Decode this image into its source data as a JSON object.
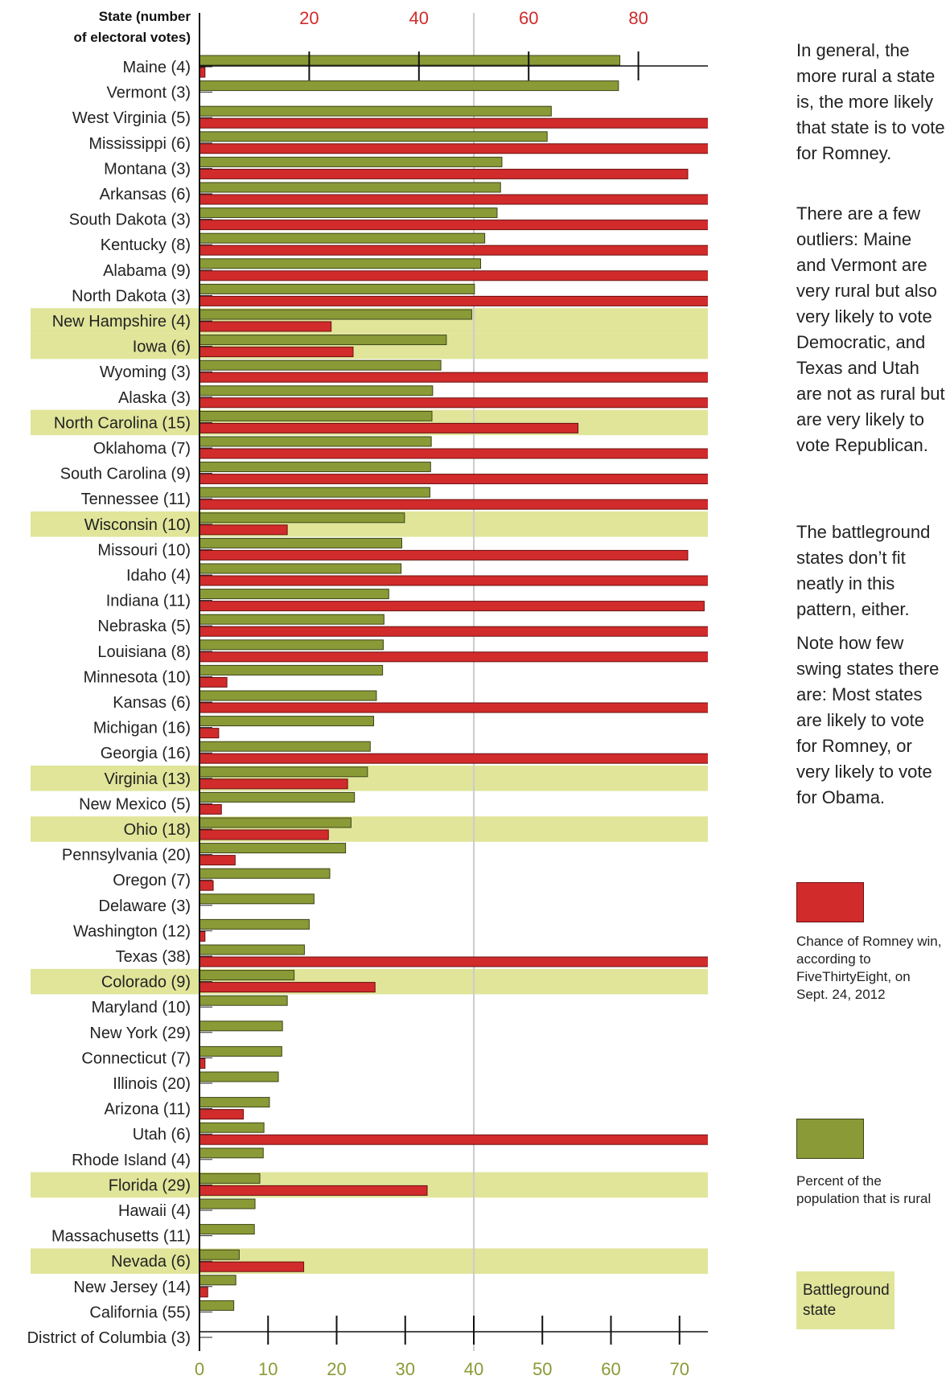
{
  "header": {
    "line1": "State (number",
    "line2": "of electoral votes)"
  },
  "notes": [
    "In general, the more rural a state is, the more likely that state is to vote for Romney.",
    "There are a few outliers: Maine and Vermont are very rural but also very likely to vote Democratic, and Texas and Utah are not as rural but are very likely to vote Republican.",
    "The battleground states don’t fit neatly in this pattern, either.",
    "Note how few swing states there are: Most states are likely to vote for Romney, or very likely to vote for Obama."
  ],
  "legend": {
    "romney": "Chance of Romney win, according to FiveThirtyEight, on Sept. 24, 2012",
    "rural": "Percent of the population that is rural",
    "battleground": "Battleground state"
  },
  "colors": {
    "red": "#d12b2b",
    "green": "#8a9a36",
    "highlight": "#e0e59a",
    "refline": "#cccccc"
  },
  "chart_data": {
    "type": "bar",
    "orientation": "horizontal",
    "top_axis": {
      "ticks": [
        "20",
        "40",
        "60",
        "80",
        "100"
      ],
      "range": [
        0,
        100
      ],
      "series": "Chance of Romney win"
    },
    "bottom_axis": {
      "ticks": [
        "0",
        "10",
        "20",
        "30",
        "40",
        "50",
        "60",
        "70",
        "80"
      ],
      "range": [
        0,
        80
      ],
      "series": "Percent of the population that is rural"
    },
    "categories": [
      "Maine (4)",
      "Vermont (3)",
      "West Virginia (5)",
      "Mississippi (6)",
      "Montana (3)",
      "Arkansas (6)",
      "South Dakota (3)",
      "Kentucky (8)",
      "Alabama (9)",
      "North Dakota (3)",
      "New Hampshire (4)",
      "Iowa (6)",
      "Wyoming (3)",
      "Alaska (3)",
      "North Carolina (15)",
      "Oklahoma (7)",
      "South Carolina (9)",
      "Tennessee (11)",
      "Wisconsin (10)",
      "Missouri (10)",
      "Idaho (4)",
      "Indiana (11)",
      "Nebraska (5)",
      "Louisiana (8)",
      "Minnesota (10)",
      "Kansas (6)",
      "Michigan (16)",
      "Georgia (16)",
      "Virginia (13)",
      "New Mexico (5)",
      "Ohio (18)",
      "Pennsylvania (20)",
      "Oregon (7)",
      "Delaware (3)",
      "Washington (12)",
      "Texas (38)",
      "Colorado (9)",
      "Maryland (10)",
      "New York (29)",
      "Connecticut (7)",
      "Illinois (20)",
      "Arizona (11)",
      "Utah (6)",
      "Rhode Island (4)",
      "Florida (29)",
      "Hawaii (4)",
      "Massachusetts (11)",
      "Nevada (6)",
      "New Jersey (14)",
      "California (55)",
      "District of Columbia (3)"
    ],
    "series": [
      {
        "name": "Percent of the population that is rural",
        "values": [
          61.3,
          61.1,
          51.3,
          50.7,
          44.1,
          43.9,
          43.4,
          41.6,
          41.0,
          40.1,
          39.7,
          36.0,
          35.2,
          34.0,
          33.9,
          33.8,
          33.7,
          33.6,
          29.9,
          29.5,
          29.4,
          27.6,
          26.9,
          26.8,
          26.7,
          25.8,
          25.4,
          24.9,
          24.5,
          22.6,
          22.1,
          21.3,
          19.0,
          16.7,
          16.0,
          15.3,
          13.8,
          12.8,
          12.1,
          12.0,
          11.5,
          10.2,
          9.4,
          9.3,
          8.8,
          8.1,
          8.0,
          5.8,
          5.3,
          5.0,
          0.0
        ]
      },
      {
        "name": "Chance of Romney win",
        "values": [
          1,
          0,
          99,
          100,
          89,
          100,
          98.5,
          100,
          100,
          99,
          24,
          28,
          100,
          99.5,
          69,
          100,
          98.5,
          99.5,
          16,
          89,
          100,
          92,
          100,
          100,
          5,
          100,
          3.5,
          98.8,
          27,
          4,
          23.5,
          6.5,
          2.5,
          0,
          1,
          100,
          32,
          0,
          0,
          1,
          0,
          8,
          100,
          0,
          41.5,
          0,
          0,
          19,
          1.5,
          0,
          0
        ]
      }
    ],
    "battleground": [
      "New Hampshire (4)",
      "Iowa (6)",
      "North Carolina (15)",
      "Wisconsin (10)",
      "Virginia (13)",
      "Ohio (18)",
      "Colorado (9)",
      "Florida (29)",
      "Nevada (6)"
    ],
    "reference_line": 40
  }
}
